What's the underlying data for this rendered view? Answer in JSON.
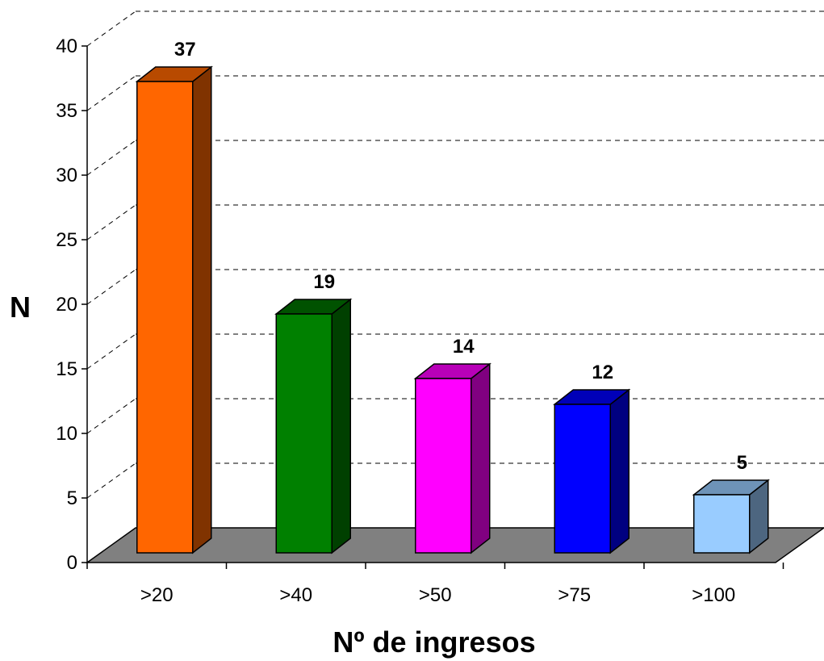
{
  "chart_data": {
    "type": "bar",
    "title": "",
    "xlabel": "Nº de ingresos",
    "ylabel": "N",
    "categories": [
      ">20",
      ">40",
      ">50",
      ">75",
      ">100"
    ],
    "values": [
      37,
      19,
      14,
      12,
      5
    ],
    "ylim": [
      0,
      40
    ],
    "y_ticks": [
      0,
      5,
      10,
      15,
      20,
      25,
      30,
      35,
      40
    ],
    "grid": true,
    "legend": "none",
    "style": "3d-column",
    "colors": {
      "front": [
        "#FF6600",
        "#008000",
        "#FF00FF",
        "#0000FF",
        "#99CCFF"
      ],
      "top": [
        "#B84A00",
        "#005200",
        "#B800B8",
        "#0000B8",
        "#6E93B8"
      ],
      "side": [
        "#803300",
        "#004000",
        "#800080",
        "#000080",
        "#4D6680"
      ],
      "floor": "#808080",
      "gridline": "#000000"
    }
  }
}
